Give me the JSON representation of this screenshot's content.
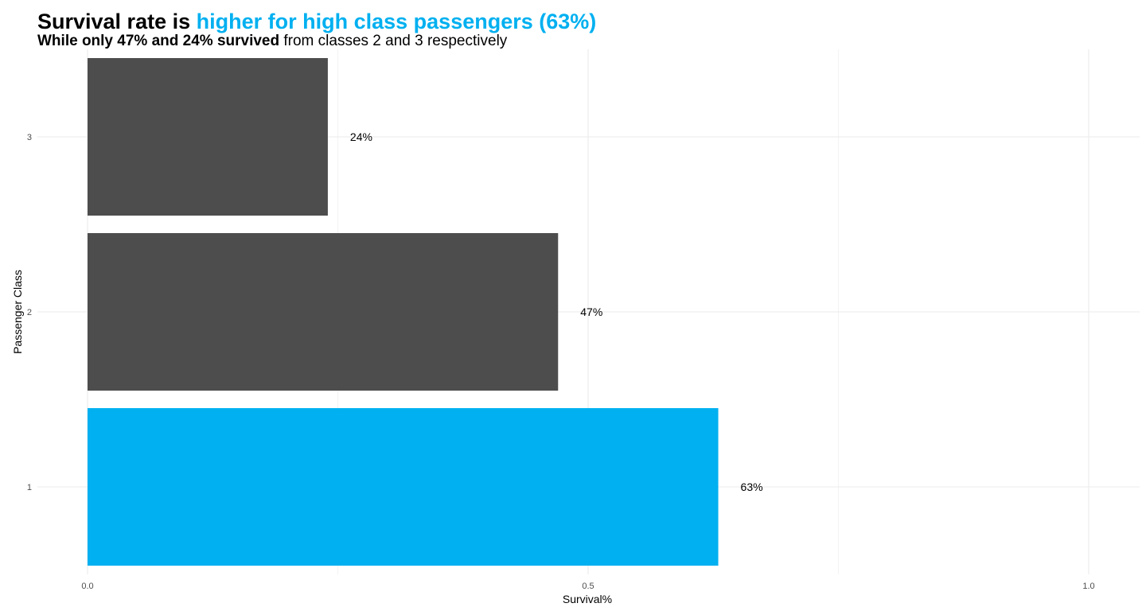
{
  "header": {
    "title_part1": "Survival rate is ",
    "title_part2": "higher for high class passengers (63%)",
    "subtitle_bold": "While only 47% and 24% survived",
    "subtitle_rest": " from classes 2 and 3 respectively"
  },
  "colors": {
    "highlight": "#00b0f0",
    "default_bar": "#4d4d4d",
    "grid": "#ebebeb",
    "text": "#000000",
    "tick_text": "#4d4d4d"
  },
  "chart_data": {
    "type": "bar",
    "orientation": "horizontal",
    "categories": [
      "1",
      "2",
      "3"
    ],
    "values": [
      0.63,
      0.47,
      0.24
    ],
    "data_labels": [
      "63%",
      "47%",
      "24%"
    ],
    "highlighted_category": "1",
    "xlabel": "Survival%",
    "ylabel": "Passenger Class",
    "xlim": [
      0,
      1.05
    ],
    "x_ticks": [
      0,
      0.5,
      1.0
    ],
    "x_tick_labels": [
      "0.0",
      "0.5",
      "1.0"
    ],
    "grid": true,
    "legend": "none"
  }
}
